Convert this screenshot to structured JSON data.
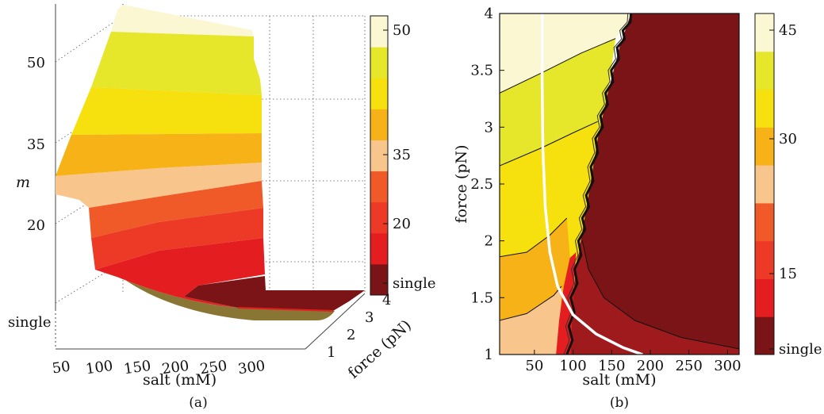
{
  "chart_data": [
    {
      "panel_label": "(a)",
      "type": "surface",
      "xlabel": "salt (mM)",
      "ylabel": "force (pN)",
      "zlabel": "m",
      "x_ticks": [
        "50",
        "100",
        "150",
        "200",
        "250",
        "300"
      ],
      "y_ticks": [
        "1",
        "2",
        "3",
        "4"
      ],
      "z_ticks": [
        "single",
        "20",
        "35",
        "50"
      ],
      "colorbar_ticks": [
        "single",
        "20",
        "35",
        "50"
      ],
      "colorbar_colors": [
        "#7a1416",
        "#e41e20",
        "#ed3a26",
        "#ef5a28",
        "#f8c58c",
        "#f6b216",
        "#f6e00e",
        "#e6e62b",
        "#faf7d2"
      ],
      "xlim": [
        20,
        320
      ],
      "ylim": [
        1,
        4
      ],
      "surface_colors": {
        "single": "#7a1416",
        "band_1": "#e41e20",
        "band_2": "#ed3a26",
        "band_3": "#ef5a28",
        "band_4": "#f8c58c",
        "band_5": "#f6b216",
        "band_6": "#f6e00e",
        "band_7": "#e6e62b",
        "band_8": "#faf7d2",
        "underside": "#8a7634"
      }
    },
    {
      "panel_label": "(b)",
      "type": "contour",
      "xlabel": "salt (mM)",
      "ylabel": "force (pN)",
      "xlim": [
        5,
        315
      ],
      "ylim": [
        1,
        4
      ],
      "x_ticks": [
        50,
        100,
        150,
        200,
        250,
        300
      ],
      "y_ticks": [
        1,
        1.5,
        2,
        2.5,
        3,
        3.5,
        4
      ],
      "colorbar_ticks": [
        "single",
        "15",
        "30",
        "45"
      ],
      "colorbar_colors": [
        "#7a1416",
        "#e41e20",
        "#ed3a26",
        "#ef5a28",
        "#f8c58c",
        "#f6b216",
        "#f6e00e",
        "#e6e62b",
        "#faf7d2"
      ],
      "regions": [
        {
          "level": "single",
          "color": "#7a1416"
        },
        {
          "level": "band_1",
          "color": "#9e1a1c"
        },
        {
          "level": "band_2",
          "color": "#e41e20"
        },
        {
          "level": "band_3",
          "color": "#f8c58c"
        },
        {
          "level": "band_4",
          "color": "#f6b216"
        },
        {
          "level": "band_5",
          "color": "#f6e00e"
        },
        {
          "level": "band_6",
          "color": "#e6e62b"
        },
        {
          "level": "band_7",
          "color": "#faf7d2"
        }
      ],
      "white_curve": [
        [
          60,
          4.0
        ],
        [
          60,
          3.4
        ],
        [
          61,
          2.8
        ],
        [
          64,
          2.3
        ],
        [
          70,
          1.9
        ],
        [
          80,
          1.6
        ],
        [
          100,
          1.35
        ],
        [
          130,
          1.18
        ],
        [
          165,
          1.06
        ],
        [
          190,
          1.0
        ]
      ],
      "boundary_curve": [
        [
          95,
          1.0
        ],
        [
          100,
          1.5
        ],
        [
          110,
          2.0
        ],
        [
          120,
          2.4
        ],
        [
          132,
          2.9
        ],
        [
          145,
          3.3
        ],
        [
          160,
          3.7
        ],
        [
          175,
          4.0
        ]
      ]
    }
  ]
}
